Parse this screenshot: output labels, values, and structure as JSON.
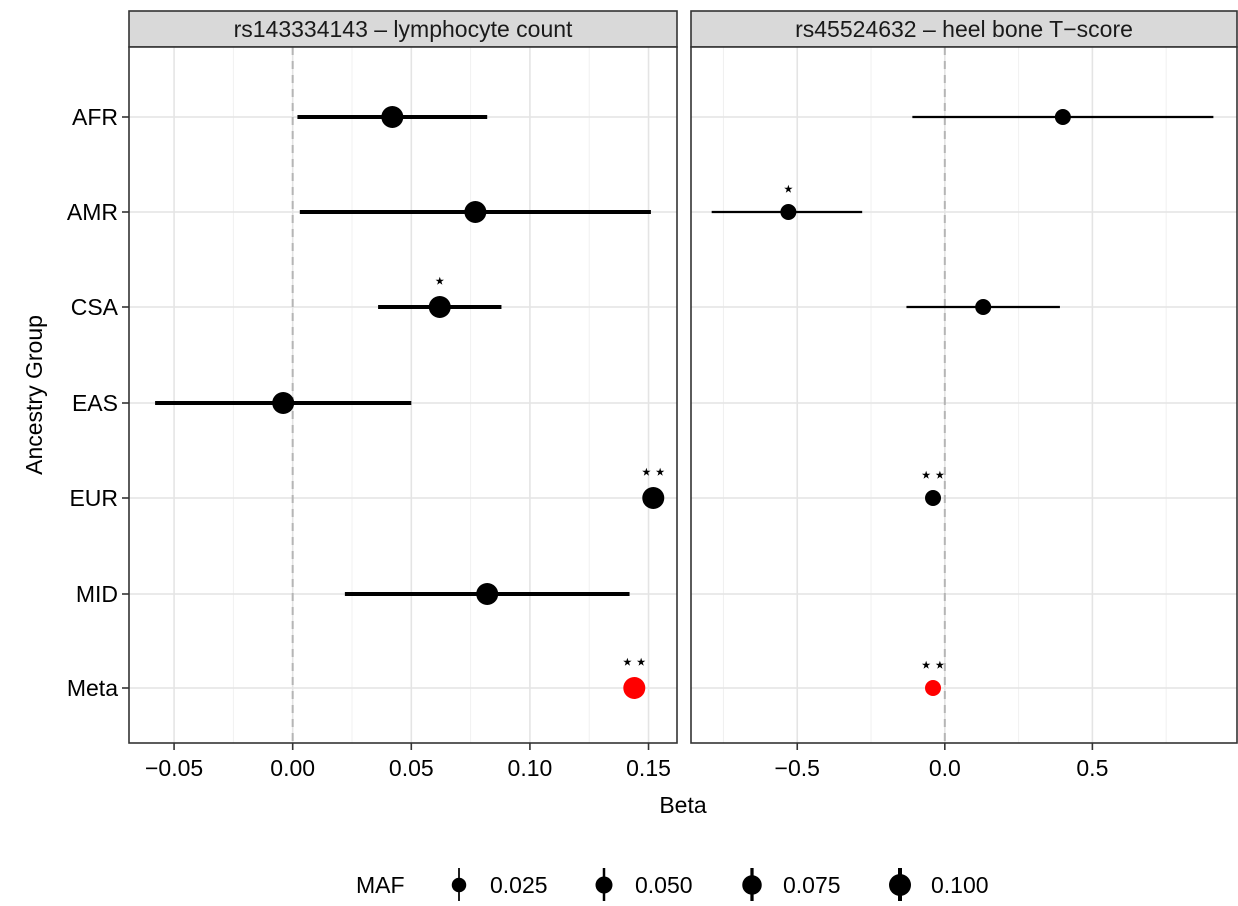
{
  "chart_data": {
    "type": "scatter",
    "subtype": "forest-plot",
    "ylabel": "Ancestry Group",
    "xlabel": "Beta",
    "categories": [
      "AFR",
      "AMR",
      "CSA",
      "EAS",
      "EUR",
      "MID",
      "Meta"
    ],
    "grid": true,
    "dashed_reference_line_x": 0,
    "highlight_color": "#ff0000",
    "point_color": "#000000",
    "panels": [
      {
        "title": "rs143334143 – lymphocyte count",
        "xlim": [
          -0.069,
          0.162
        ],
        "xticks": [
          -0.05,
          0.0,
          0.05,
          0.1,
          0.15
        ],
        "xtick_labels": [
          "−0.05",
          "0.00",
          "0.05",
          "0.10",
          "0.15"
        ],
        "maf": 0.1,
        "rows": [
          {
            "group": "AFR",
            "beta": 0.042,
            "ci_low": 0.002,
            "ci_high": 0.082,
            "sig": ""
          },
          {
            "group": "AMR",
            "beta": 0.077,
            "ci_low": 0.003,
            "ci_high": 0.151,
            "sig": ""
          },
          {
            "group": "CSA",
            "beta": 0.062,
            "ci_low": 0.036,
            "ci_high": 0.088,
            "sig": "⋆"
          },
          {
            "group": "EAS",
            "beta": -0.004,
            "ci_low": -0.058,
            "ci_high": 0.05,
            "sig": ""
          },
          {
            "group": "EUR",
            "beta": 0.152,
            "ci_low": null,
            "ci_high": null,
            "sig": "⋆⋆"
          },
          {
            "group": "MID",
            "beta": 0.082,
            "ci_low": 0.022,
            "ci_high": 0.142,
            "sig": ""
          },
          {
            "group": "Meta",
            "beta": 0.144,
            "ci_low": null,
            "ci_high": null,
            "sig": "⋆⋆",
            "highlight": true
          }
        ]
      },
      {
        "title": "rs45524632 – heel bone T−score",
        "xlim": [
          -0.86,
          0.99
        ],
        "xticks": [
          -0.5,
          0.0,
          0.5
        ],
        "xtick_labels": [
          "−0.5",
          "0.0",
          "0.5"
        ],
        "maf": 0.04,
        "rows": [
          {
            "group": "AFR",
            "beta": 0.4,
            "ci_low": -0.11,
            "ci_high": 0.91,
            "sig": ""
          },
          {
            "group": "AMR",
            "beta": -0.53,
            "ci_low": -0.79,
            "ci_high": -0.28,
            "sig": "⋆"
          },
          {
            "group": "CSA",
            "beta": 0.13,
            "ci_low": -0.13,
            "ci_high": 0.39,
            "sig": ""
          },
          {
            "group": "EAS",
            "beta": null,
            "ci_low": null,
            "ci_high": null,
            "sig": ""
          },
          {
            "group": "EUR",
            "beta": -0.04,
            "ci_low": null,
            "ci_high": null,
            "sig": "⋆⋆"
          },
          {
            "group": "MID",
            "beta": null,
            "ci_low": null,
            "ci_high": null,
            "sig": ""
          },
          {
            "group": "Meta",
            "beta": -0.04,
            "ci_low": null,
            "ci_high": null,
            "sig": "⋆⋆",
            "highlight": true
          }
        ]
      }
    ],
    "legend": {
      "title": "MAF",
      "position": "bottom",
      "items": [
        {
          "value": 0.025,
          "label": "0.025"
        },
        {
          "value": 0.05,
          "label": "0.050"
        },
        {
          "value": 0.075,
          "label": "0.075"
        },
        {
          "value": 0.1,
          "label": "0.100"
        }
      ]
    }
  }
}
